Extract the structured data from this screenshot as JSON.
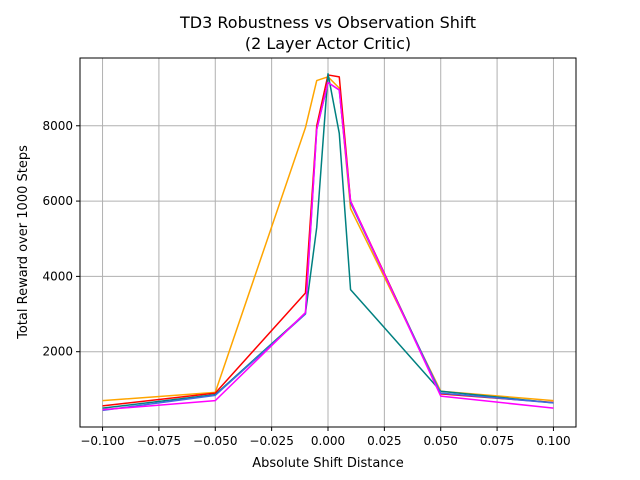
{
  "chart_data": {
    "type": "line",
    "title_line1": "TD3 Robustness vs Observation Shift",
    "title_line2": "(2 Layer Actor Critic)",
    "xlabel": "Absolute Shift Distance",
    "ylabel": "Total Reward over 1000 Steps",
    "xlim": [
      -0.11,
      0.11
    ],
    "ylim": [
      0,
      9800
    ],
    "grid": true,
    "x_ticks": [
      -0.1,
      -0.075,
      -0.05,
      -0.025,
      0.0,
      0.025,
      0.05,
      0.075,
      0.1
    ],
    "x_tick_labels": [
      "−0.100",
      "−0.075",
      "−0.050",
      "−0.025",
      "0.000",
      "0.025",
      "0.050",
      "0.075",
      "0.100"
    ],
    "y_ticks": [
      2000,
      4000,
      6000,
      8000
    ],
    "y_tick_labels": [
      "2000",
      "4000",
      "6000",
      "8000"
    ],
    "series": [
      {
        "color": "#ffa500",
        "x": [
          -0.1,
          -0.05,
          -0.01,
          -0.005,
          0.0,
          0.005,
          0.01,
          0.05,
          0.1
        ],
        "y": [
          700,
          920,
          7950,
          9200,
          9300,
          9000,
          5800,
          950,
          700
        ]
      },
      {
        "color": "#ff0000",
        "x": [
          -0.1,
          -0.05,
          -0.01,
          -0.005,
          0.0,
          0.005,
          0.01,
          0.05,
          0.1
        ],
        "y": [
          560,
          900,
          3560,
          8000,
          9350,
          9300,
          6000,
          880,
          650
        ]
      },
      {
        "color": "#008080",
        "x": [
          -0.1,
          -0.05,
          -0.01,
          -0.005,
          0.0,
          0.005,
          0.01,
          0.05,
          0.1
        ],
        "y": [
          500,
          860,
          3020,
          5300,
          9380,
          7800,
          3650,
          950,
          640
        ]
      },
      {
        "color": "#4169e1",
        "x": [
          -0.1,
          -0.05,
          -0.01,
          -0.005,
          0.0,
          0.005,
          0.01,
          0.05,
          0.1
        ],
        "y": [
          440,
          840,
          3000,
          7900,
          9150,
          8950,
          5950,
          900,
          640
        ]
      },
      {
        "color": "#ff00ff",
        "x": [
          -0.1,
          -0.05,
          -0.01,
          -0.005,
          0.0,
          0.005,
          0.01,
          0.05,
          0.1
        ],
        "y": [
          460,
          700,
          3040,
          7900,
          9150,
          8950,
          6000,
          820,
          500
        ]
      }
    ]
  }
}
